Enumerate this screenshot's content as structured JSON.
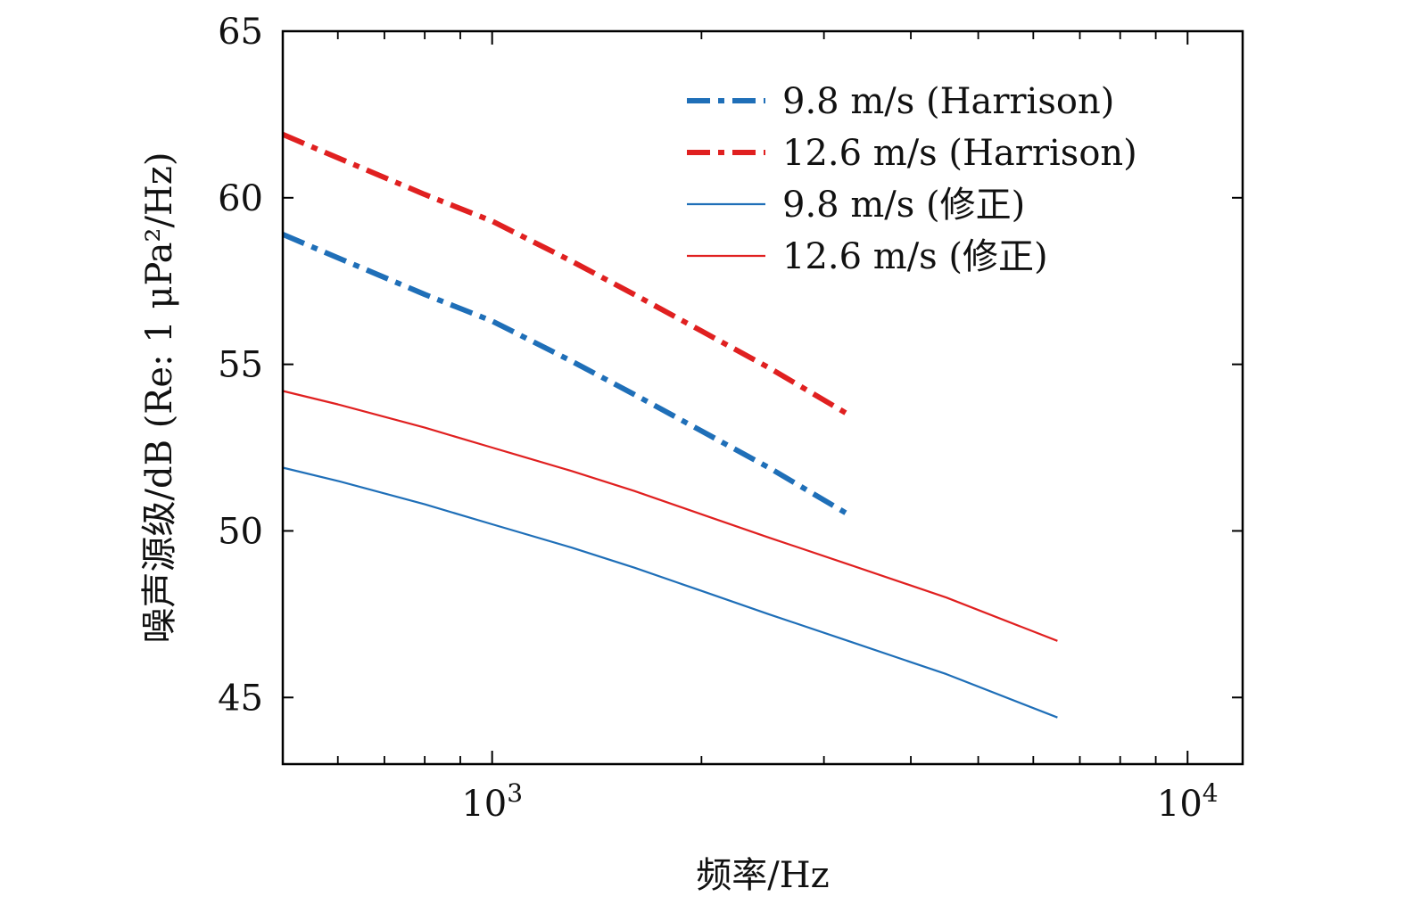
{
  "chart_data": {
    "type": "line",
    "title": "",
    "xlabel": "频率/Hz",
    "ylabel": "噪声源级/dB (Re: 1 μPa²/Hz)",
    "xscale": "log",
    "xlim": [
      500,
      12000
    ],
    "ylim": [
      43,
      65
    ],
    "yticks": [
      {
        "value": 45,
        "label": "45"
      },
      {
        "value": 50,
        "label": "50"
      },
      {
        "value": 55,
        "label": "55"
      },
      {
        "value": 60,
        "label": "60"
      },
      {
        "value": 65,
        "label": "65"
      }
    ],
    "xticks_major": [
      {
        "value": 1000,
        "base": "10",
        "exp": "3"
      },
      {
        "value": 10000,
        "base": "10",
        "exp": "4"
      }
    ],
    "grid": false,
    "legend_position": "top-right",
    "series": [
      {
        "name": "9.8 m/s (Harrison)",
        "color": "#1f6fb8",
        "style": "dashdot",
        "x": [
          500,
          600,
          800,
          1000,
          1300,
          1600,
          2000,
          2500,
          3250
        ],
        "y": [
          58.9,
          58.2,
          57.1,
          56.3,
          55.1,
          54.1,
          53.0,
          51.9,
          50.5
        ]
      },
      {
        "name": "12.6 m/s (Harrison)",
        "color": "#e02020",
        "style": "dashdot",
        "x": [
          500,
          600,
          800,
          1000,
          1300,
          1600,
          2000,
          2500,
          3250
        ],
        "y": [
          61.9,
          61.2,
          60.1,
          59.3,
          58.1,
          57.1,
          56.0,
          54.9,
          53.5
        ]
      },
      {
        "name": "9.8 m/s (修正)",
        "color": "#1f6fb8",
        "style": "solid",
        "x": [
          500,
          600,
          800,
          1000,
          1300,
          1600,
          2000,
          2500,
          3250,
          4500,
          6500
        ],
        "y": [
          51.9,
          51.5,
          50.8,
          50.2,
          49.5,
          48.9,
          48.2,
          47.5,
          46.7,
          45.7,
          44.4
        ]
      },
      {
        "name": "12.6 m/s (修正)",
        "color": "#e02020",
        "style": "solid",
        "x": [
          500,
          600,
          800,
          1000,
          1300,
          1600,
          2000,
          2500,
          3250,
          4500,
          6500
        ],
        "y": [
          54.2,
          53.8,
          53.1,
          52.5,
          51.8,
          51.2,
          50.5,
          49.8,
          49.0,
          48.0,
          46.7
        ]
      }
    ]
  }
}
